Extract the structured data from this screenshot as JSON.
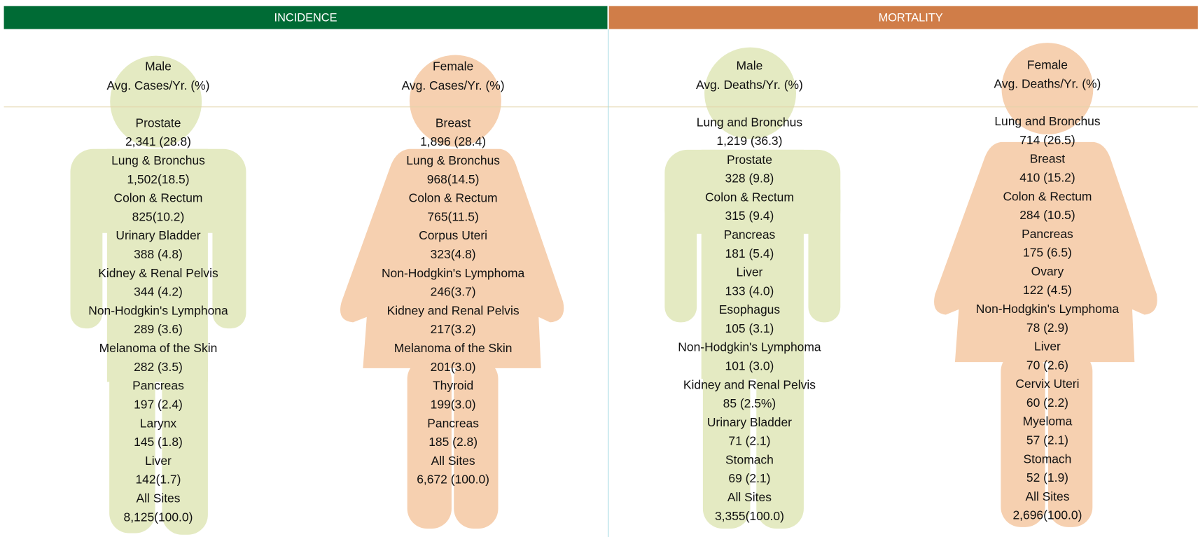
{
  "header": {
    "incidence": "INCIDENCE",
    "mortality": "MORTALITY"
  },
  "columns": [
    {
      "header": [
        "Male",
        "Avg. Cases/Yr. (%)"
      ],
      "items": [
        {
          "site": "Prostate",
          "value": "2,341 (28.8)"
        },
        {
          "site": "Lung & Bronchus",
          "value": "1,502(18.5)"
        },
        {
          "site": "Colon & Rectum",
          "value": "825(10.2)"
        },
        {
          "site": "Urinary Bladder",
          "value": "388 (4.8)"
        },
        {
          "site": "Kidney & Renal Pelvis",
          "value": "344 (4.2)"
        },
        {
          "site": "Non-Hodgkin's Lymphona",
          "value": "289 (3.6)"
        },
        {
          "site": "Melanoma of the Skin",
          "value": "282 (3.5)"
        },
        {
          "site": "Pancreas",
          "value": "197 (2.4)"
        },
        {
          "site": "Larynx",
          "value": "145 (1.8)"
        },
        {
          "site": "Liver",
          "value": "142(1.7)"
        },
        {
          "site": "All Sites",
          "value": "8,125(100.0)"
        }
      ]
    },
    {
      "header": [
        "Female",
        "Avg. Cases/Yr. (%)"
      ],
      "items": [
        {
          "site": "Breast",
          "value": "1,896 (28.4)"
        },
        {
          "site": "Lung & Bronchus",
          "value": "968(14.5)"
        },
        {
          "site": "Colon & Rectum",
          "value": "765(11.5)"
        },
        {
          "site": "Corpus Uteri",
          "value": "323(4.8)"
        },
        {
          "site": "Non-Hodgkin's Lymphoma",
          "value": "246(3.7)"
        },
        {
          "site": "Kidney and Renal Pelvis",
          "value": "217(3.2)"
        },
        {
          "site": "Melanoma of the Skin",
          "value": "201(3.0)"
        },
        {
          "site": "Thyroid",
          "value": "199(3.0)"
        },
        {
          "site": "Pancreas",
          "value": "185 (2.8)"
        },
        {
          "site": "All Sites",
          "value": "6,672 (100.0)"
        }
      ]
    },
    {
      "header": [
        "Male",
        "Avg. Deaths/Yr. (%)"
      ],
      "items": [
        {
          "site": "Lung and Bronchus",
          "value": "1,219 (36.3)"
        },
        {
          "site": "Prostate",
          "value": "328 (9.8)"
        },
        {
          "site": "Colon & Rectum",
          "value": "315 (9.4)"
        },
        {
          "site": "Pancreas",
          "value": "181 (5.4)"
        },
        {
          "site": "Liver",
          "value": "133 (4.0)"
        },
        {
          "site": "Esophagus",
          "value": "105 (3.1)"
        },
        {
          "site": "Non-Hodgkin's Lymphoma",
          "value": "101 (3.0)"
        },
        {
          "site": "Kidney and Renal Pelvis",
          "value": "85 (2.5%)"
        },
        {
          "site": "Urinary Bladder",
          "value": "71 (2.1)"
        },
        {
          "site": "Stomach",
          "value": "69 (2.1)"
        },
        {
          "site": "All Sites",
          "value": "3,355(100.0)"
        }
      ]
    },
    {
      "header": [
        "Female",
        "Avg. Deaths/Yr. (%)"
      ],
      "items": [
        {
          "site": "Lung and Bronchus",
          "value": "714 (26.5)"
        },
        {
          "site": "Breast",
          "value": "410 (15.2)"
        },
        {
          "site": "Colon & Rectum",
          "value": "284 (10.5)"
        },
        {
          "site": "Pancreas",
          "value": "175 (6.5)"
        },
        {
          "site": "Ovary",
          "value": "122 (4.5)"
        },
        {
          "site": "Non-Hodgkin's Lymphoma",
          "value": "78 (2.9)"
        },
        {
          "site": "Liver",
          "value": "70 (2.6)"
        },
        {
          "site": "Cervix Uteri",
          "value": "60 (2.2)"
        },
        {
          "site": "Myeloma",
          "value": "57 (2.1)"
        },
        {
          "site": "Stomach",
          "value": "52 (1.9)"
        },
        {
          "site": "All Sites",
          "value": "2,696(100.0)"
        }
      ]
    }
  ]
}
